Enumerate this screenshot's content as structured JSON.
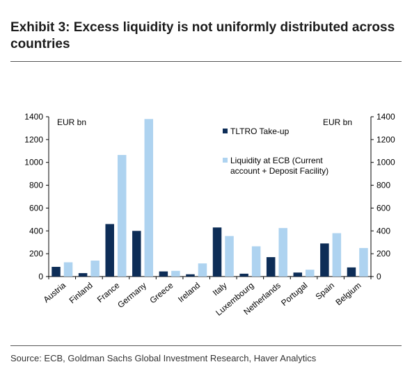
{
  "title": "Exhibit 3: Excess liquidity is not uniformly distributed across countries",
  "source": "Source: ECB, Goldman Sachs Global Investment Research, Haver Analytics",
  "colors": {
    "tltro": "#0d2d57",
    "liquidity": "#aed3f0",
    "axis": "#000000"
  },
  "chart_data": {
    "type": "bar",
    "title": "",
    "ylabel_left": "EUR bn",
    "ylabel_right": "EUR bn",
    "ylim": [
      0,
      1400
    ],
    "yticks": [
      0,
      200,
      400,
      600,
      800,
      1000,
      1200,
      1400
    ],
    "categories": [
      "Austria",
      "Finland",
      "France",
      "Germany",
      "Greece",
      "Ireland",
      "Italy",
      "Luxembourg",
      "Netherlands",
      "Portugal",
      "Spain",
      "Belgium"
    ],
    "series": [
      {
        "name": "TLTRO Take-up",
        "values": [
          85,
          30,
          460,
          400,
          45,
          20,
          430,
          25,
          170,
          35,
          290,
          80
        ]
      },
      {
        "name": "Liquidity at ECB (Current account + Deposit Facility)",
        "values": [
          125,
          140,
          1065,
          1380,
          50,
          115,
          355,
          265,
          425,
          60,
          380,
          250
        ]
      }
    ],
    "grid": false,
    "legend_position": "top-right"
  }
}
